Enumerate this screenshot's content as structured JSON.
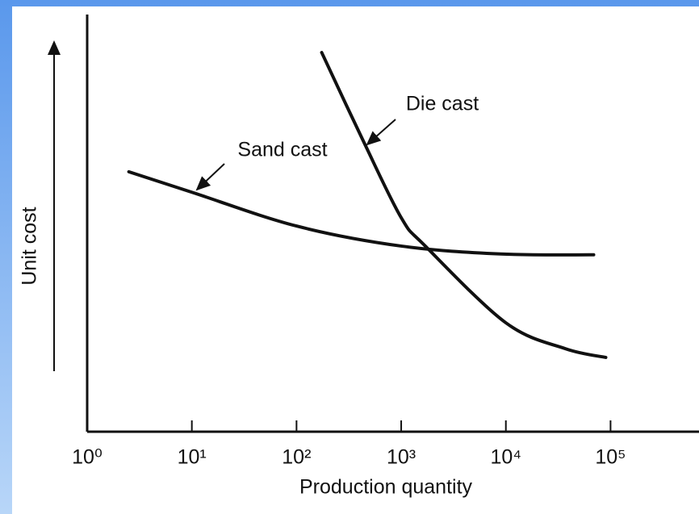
{
  "chart_data": {
    "type": "line",
    "xlabel": "Production quantity",
    "ylabel": "Unit cost",
    "xscale": "log",
    "xlim": [
      1,
      700000
    ],
    "ylim": [
      0,
      100
    ],
    "xticks": [
      {
        "value": 1,
        "label": "10⁰"
      },
      {
        "value": 10,
        "label": "10¹"
      },
      {
        "value": 100,
        "label": "10²"
      },
      {
        "value": 1000,
        "label": "10³"
      },
      {
        "value": 10000,
        "label": "10⁴"
      },
      {
        "value": 100000,
        "label": "10⁵"
      }
    ],
    "series": [
      {
        "name": "Sand cast",
        "color": "#111111",
        "x": [
          2.5,
          10,
          100,
          1000,
          9000,
          69000
        ],
        "values": [
          62.3,
          57.4,
          49.3,
          44.5,
          42.6,
          42.4
        ]
      },
      {
        "name": "Die cast",
        "color": "#111111",
        "x": [
          174,
          436,
          1000,
          1700,
          10000,
          37000,
          90000
        ],
        "values": [
          90.9,
          69.6,
          51.3,
          44.5,
          26.1,
          19.9,
          17.8
        ]
      }
    ]
  }
}
